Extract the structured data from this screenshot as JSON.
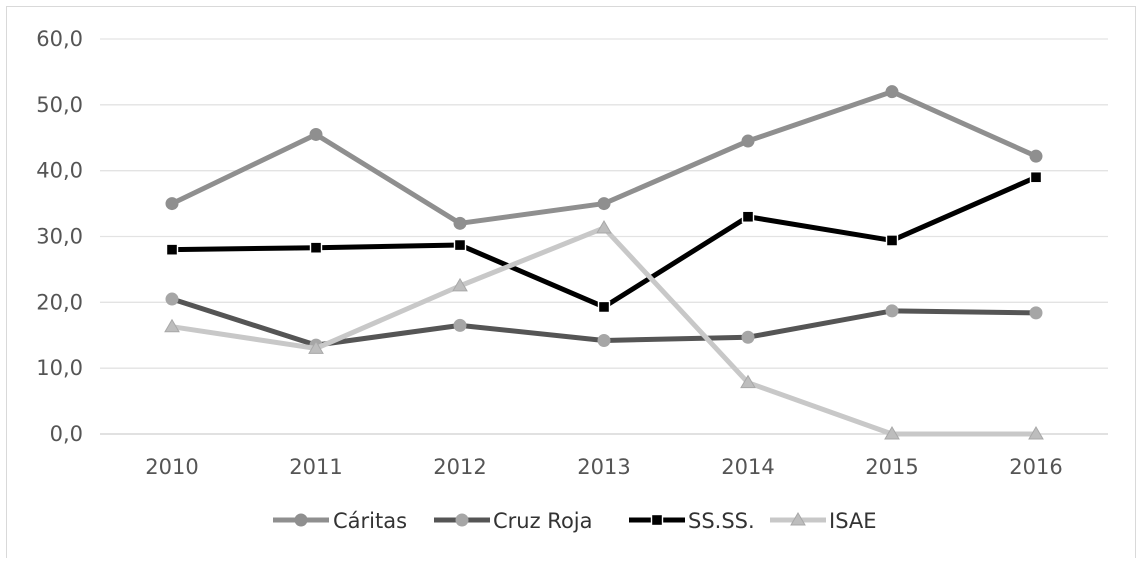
{
  "chart_data": {
    "type": "line",
    "title": "",
    "xlabel": "",
    "ylabel": "",
    "categories": [
      "2010",
      "2011",
      "2012",
      "2013",
      "2014",
      "2015",
      "2016"
    ],
    "ylim": [
      0,
      60
    ],
    "yticks": [
      0,
      10,
      20,
      30,
      40,
      50,
      60
    ],
    "ytick_labels": [
      "0,0",
      "10,0",
      "20,0",
      "30,0",
      "40,0",
      "50,0",
      "60,0"
    ],
    "grid": true,
    "legend_position": "bottom",
    "series": [
      {
        "name": "Cáritas",
        "color": "#8f8f8f",
        "marker": "circle",
        "values": [
          35.0,
          45.5,
          32.0,
          35.0,
          44.5,
          52.0,
          42.2
        ]
      },
      {
        "name": "Cruz Roja",
        "color": "#555555",
        "marker": "circle",
        "marker_color": "#a6a6a6",
        "values": [
          20.5,
          13.5,
          16.5,
          14.2,
          14.7,
          18.7,
          18.4
        ]
      },
      {
        "name": "SS.SS.",
        "color": "#000000",
        "marker": "square",
        "values": [
          28.0,
          28.3,
          28.7,
          19.3,
          33.0,
          29.4,
          39.0
        ]
      },
      {
        "name": "ISAE",
        "color": "#c8c8c8",
        "marker": "triangle",
        "values": [
          16.3,
          13.0,
          22.5,
          31.3,
          7.8,
          0.0,
          0.0
        ]
      }
    ]
  }
}
